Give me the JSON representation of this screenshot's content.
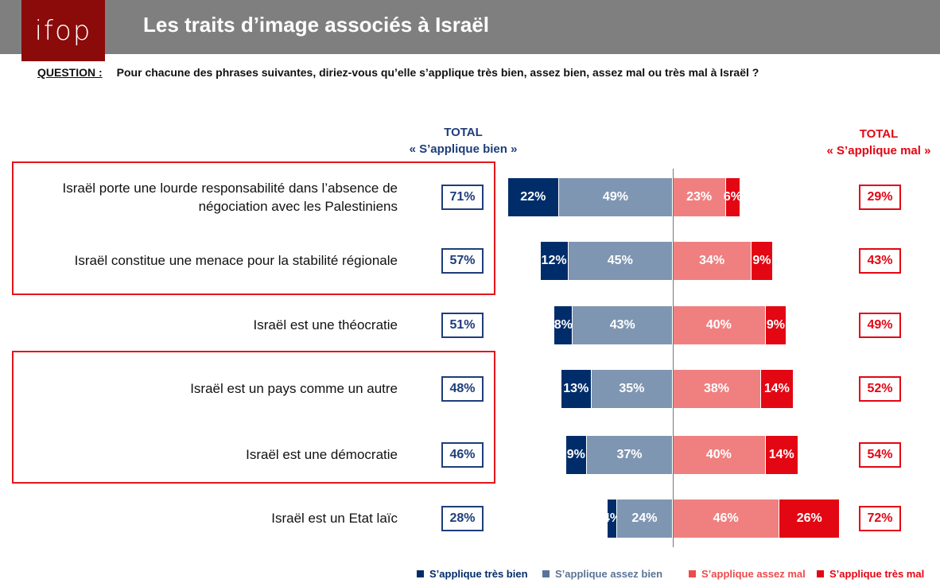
{
  "header": {
    "logo": "ifop",
    "title": "Les traits d’image associés à Israël"
  },
  "question": {
    "label": "QUESTION :",
    "text": "Pour chacune des phrases suivantes, diriez-vous qu’elle s’applique très bien, assez bien, assez mal ou très mal à Israël ?"
  },
  "chart_data": {
    "type": "bar",
    "orientation": "horizontal diverging stacked",
    "col_left": {
      "line1": "TOTAL",
      "line2": "« S’applique bien »"
    },
    "col_right": {
      "line1": "TOTAL",
      "line2": "« S’applique mal »"
    },
    "colors": {
      "tres_bien": "#002d6a",
      "assez_bien": "#7f96b2",
      "assez_mal": "#f08080",
      "tres_mal": "#e30613",
      "frame": "#e3161b"
    },
    "legend": [
      "S’applique très bien",
      "S’applique assez bien",
      "S’applique assez mal",
      "S’applique très mal"
    ],
    "rows": [
      {
        "label": "Israël porte une lourde responsabilité dans l’absence de négociation avec les Palestiniens",
        "tres_bien": 22,
        "assez_bien": 49,
        "assez_mal": 23,
        "tres_mal": 6,
        "total_bien": "71%",
        "total_mal": "29%",
        "tres_bien_label": "22%",
        "assez_bien_label": "49%",
        "assez_mal_label": "23%",
        "tres_mal_label": "6%"
      },
      {
        "label": "Israël constitue une menace pour la stabilité régionale",
        "tres_bien": 12,
        "assez_bien": 45,
        "assez_mal": 34,
        "tres_mal": 9,
        "total_bien": "57%",
        "total_mal": "43%",
        "tres_bien_label": "12%",
        "assez_bien_label": "45%",
        "assez_mal_label": "34%",
        "tres_mal_label": "9%"
      },
      {
        "label": "Israël est une théocratie",
        "tres_bien": 8,
        "assez_bien": 43,
        "assez_mal": 40,
        "tres_mal": 9,
        "total_bien": "51%",
        "total_mal": "49%",
        "tres_bien_label": "8%",
        "assez_bien_label": "43%",
        "assez_mal_label": "40%",
        "tres_mal_label": "9%"
      },
      {
        "label": "Israël est un pays comme un autre",
        "tres_bien": 13,
        "assez_bien": 35,
        "assez_mal": 38,
        "tres_mal": 14,
        "total_bien": "48%",
        "total_mal": "52%",
        "tres_bien_label": "13%",
        "assez_bien_label": "35%",
        "assez_mal_label": "38%",
        "tres_mal_label": "14%"
      },
      {
        "label": "Israël est une démocratie",
        "tres_bien": 9,
        "assez_bien": 37,
        "assez_mal": 40,
        "tres_mal": 14,
        "total_bien": "46%",
        "total_mal": "54%",
        "tres_bien_label": "9%",
        "assez_bien_label": "37%",
        "assez_mal_label": "40%",
        "tres_mal_label": "14%"
      },
      {
        "label": "Israël est un Etat laïc",
        "tres_bien": 4,
        "assez_bien": 24,
        "assez_mal": 46,
        "tres_mal": 26,
        "total_bien": "28%",
        "total_mal": "72%",
        "tres_bien_label": "4%",
        "assez_bien_label": "24%",
        "assez_mal_label": "46%",
        "tres_mal_label": "26%"
      }
    ],
    "highlighted_groups": [
      [
        0,
        1
      ],
      [
        3,
        4
      ]
    ]
  }
}
